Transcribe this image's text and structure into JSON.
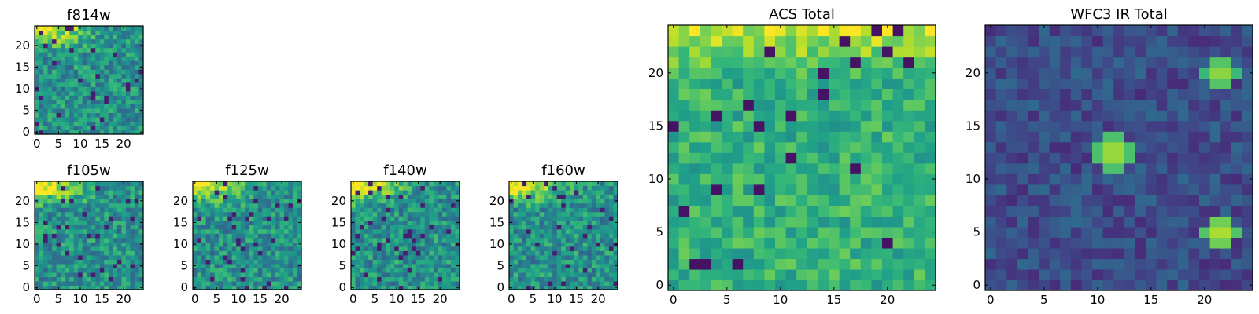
{
  "chart_data": [
    {
      "id": "f814w",
      "type": "heatmap",
      "title": "f814w",
      "colormap": "viridis",
      "grid_size": 25,
      "xticks": [
        0,
        5,
        10,
        15,
        20
      ],
      "yticks": [
        0,
        5,
        10,
        15,
        20
      ],
      "xlim": [
        0,
        24
      ],
      "ylim": [
        0,
        24
      ],
      "pattern": "bright top rows fading to noisy mid values"
    },
    {
      "id": "f105w",
      "type": "heatmap",
      "title": "f105w",
      "colormap": "viridis",
      "grid_size": 25,
      "xticks": [
        0,
        5,
        10,
        15,
        20
      ],
      "yticks": [
        0,
        5,
        10,
        15,
        20
      ],
      "xlim": [
        0,
        24
      ],
      "ylim": [
        0,
        24
      ],
      "pattern": "bright top-left corner, mottled mid-to-low values"
    },
    {
      "id": "f125w",
      "type": "heatmap",
      "title": "f125w",
      "colormap": "viridis",
      "grid_size": 25,
      "xticks": [
        0,
        5,
        10,
        15,
        20
      ],
      "yticks": [
        0,
        5,
        10,
        15,
        20
      ],
      "xlim": [
        0,
        24
      ],
      "ylim": [
        0,
        24
      ],
      "pattern": "bright top-left corner, mottled mid values"
    },
    {
      "id": "f140w",
      "type": "heatmap",
      "title": "f140w",
      "colormap": "viridis",
      "grid_size": 25,
      "xticks": [
        0,
        5,
        10,
        15,
        20
      ],
      "yticks": [
        0,
        5,
        10,
        15,
        20
      ],
      "xlim": [
        0,
        24
      ],
      "ylim": [
        0,
        24
      ],
      "pattern": "bright top-left corner, mottled mid-to-low values"
    },
    {
      "id": "f160w",
      "type": "heatmap",
      "title": "f160w",
      "colormap": "viridis",
      "grid_size": 25,
      "xticks": [
        0,
        5,
        10,
        15,
        20
      ],
      "yticks": [
        0,
        5,
        10,
        15,
        20
      ],
      "xlim": [
        0,
        24
      ],
      "ylim": [
        0,
        24
      ],
      "pattern": "bright top rows, darker lower region"
    },
    {
      "id": "acs_total",
      "type": "heatmap",
      "title": "ACS Total",
      "colormap": "viridis",
      "grid_size": 25,
      "xticks": [
        0,
        5,
        10,
        15,
        20
      ],
      "yticks": [
        0,
        5,
        10,
        15,
        20
      ],
      "xlim": [
        0,
        24
      ],
      "ylim": [
        0,
        24
      ],
      "pattern": "yellow top rows, green-teal mid values with scattered dark pixels"
    },
    {
      "id": "wfc3_ir_total",
      "type": "heatmap",
      "title": "WFC3 IR Total",
      "colormap": "viridis",
      "grid_size": 25,
      "xticks": [
        0,
        5,
        10,
        15,
        20
      ],
      "yticks": [
        0,
        5,
        10,
        15,
        20
      ],
      "xlim": [
        0,
        24
      ],
      "ylim": [
        0,
        24
      ],
      "pattern": "mostly dark blue-purple with bright sources",
      "hotspots": [
        {
          "x": 11.5,
          "y": 12.5,
          "value": 0.95
        },
        {
          "x": 21.5,
          "y": 20,
          "value": 0.9
        },
        {
          "x": 21.5,
          "y": 5,
          "value": 0.95
        }
      ]
    }
  ]
}
